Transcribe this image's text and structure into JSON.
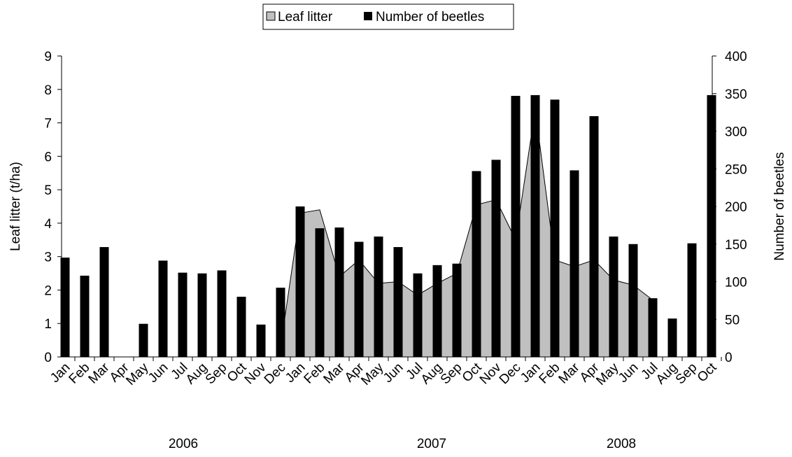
{
  "chart_data": {
    "type": "bar-area",
    "legend_position": "top",
    "categories": [
      "Jan",
      "Feb",
      "Mar",
      "Apr",
      "May",
      "Jun",
      "Jul",
      "Aug",
      "Sep",
      "Oct",
      "Nov",
      "Dec",
      "Jan",
      "Feb",
      "Mar",
      "Apr",
      "May",
      "Jun",
      "Jul",
      "Aug",
      "Sep",
      "Oct",
      "Nov",
      "Dec",
      "Jan",
      "Feb",
      "Mar",
      "Apr",
      "May",
      "Jun",
      "Jul",
      "Aug",
      "Sep",
      "Oct"
    ],
    "years": [
      "2006",
      "2007",
      "2008"
    ],
    "ylabel": "Leaf litter (t/ha)",
    "y2label": "Number of beetles",
    "ylim": [
      0,
      9
    ],
    "yticks": [
      0,
      1,
      2,
      3,
      4,
      5,
      6,
      7,
      8,
      9
    ],
    "y2lim": [
      0,
      400
    ],
    "y2ticks": [
      0,
      50,
      100,
      150,
      200,
      250,
      300,
      350,
      400
    ],
    "series": [
      {
        "name": "Leaf litter",
        "type": "area",
        "color": "#c0c0c0",
        "axis": "y",
        "values": [
          null,
          null,
          null,
          null,
          null,
          null,
          null,
          null,
          null,
          null,
          null,
          0.3,
          4.3,
          4.4,
          2.4,
          2.9,
          2.2,
          2.25,
          1.85,
          2.2,
          2.5,
          4.55,
          4.7,
          3.5,
          7.4,
          2.9,
          2.7,
          2.9,
          2.3,
          2.15,
          1.7,
          null,
          null,
          null
        ]
      },
      {
        "name": "Number of beetles",
        "type": "bar",
        "color": "#000000",
        "axis": "y2",
        "values": [
          132,
          108,
          146,
          0,
          44,
          128,
          112,
          111,
          115,
          80,
          43,
          92,
          200,
          171,
          172,
          153,
          160,
          146,
          111,
          122,
          124,
          247,
          262,
          347,
          348,
          342,
          248,
          320,
          160,
          150,
          78,
          51,
          151,
          348
        ]
      }
    ]
  }
}
